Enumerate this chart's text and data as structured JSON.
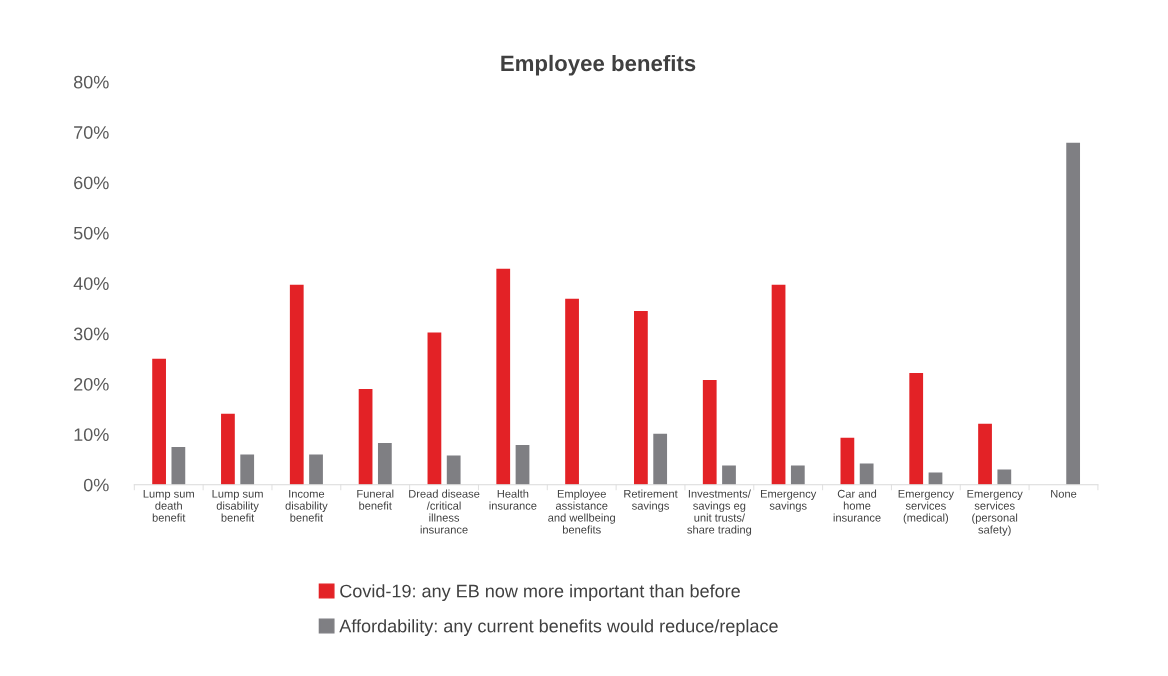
{
  "chart_data": {
    "type": "bar",
    "title": "Employee benefits",
    "categories": [
      "Lump sum\ndeath\nbenefit",
      "Lump sum\ndisability\nbenefit",
      "Income\ndisability\nbenefit",
      "Funeral\nbenefit",
      "Dread disease\n/critical\nillness\ninsurance",
      "Health\ninsurance",
      "Employee\nassistance\nand wellbeing\nbenefits",
      "Retirement\nsavings",
      "Investments/\nsavings eg\nunit trusts/\nshare trading",
      "Emergency\nsavings",
      "Car and\nhome\ninsurance",
      "Emergency\nservices\n(medical)",
      "Emergency\nservices\n(personal\nsafety)",
      "None"
    ],
    "series": [
      {
        "name": "Covid-19: any EB now more important than before",
        "color": "#e32226",
        "values": [
          25.0,
          14.1,
          39.7,
          19.0,
          30.2,
          42.9,
          36.9,
          34.5,
          20.8,
          39.7,
          9.3,
          22.2,
          12.1,
          null
        ]
      },
      {
        "name": "Affordability: any current benefits would reduce/replace",
        "color": "#7f7f83",
        "values": [
          7.5,
          6.0,
          6.0,
          8.3,
          5.8,
          7.9,
          null,
          10.1,
          3.8,
          3.8,
          4.2,
          2.4,
          3.0,
          67.9
        ]
      }
    ],
    "ylim": [
      0,
      80
    ],
    "yticks": [
      {
        "value": 0,
        "label": "0%"
      },
      {
        "value": 10,
        "label": "10%"
      },
      {
        "value": 20,
        "label": "20%"
      },
      {
        "value": 30,
        "label": "30%"
      },
      {
        "value": 40,
        "label": "40%"
      },
      {
        "value": 50,
        "label": "50%"
      },
      {
        "value": 60,
        "label": "60%"
      },
      {
        "value": 70,
        "label": "70%"
      },
      {
        "value": 80,
        "label": "80%"
      }
    ],
    "grid": false,
    "legend": "bottom"
  }
}
